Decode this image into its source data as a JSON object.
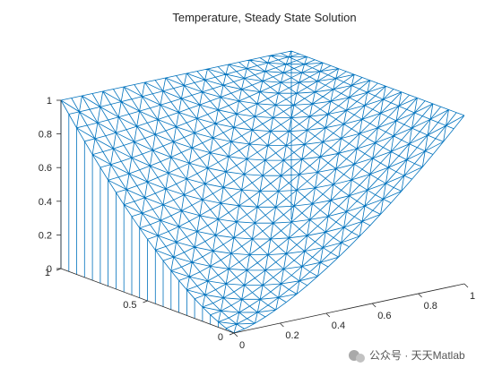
{
  "chart_data": {
    "type": "surface-mesh",
    "title": "Temperature, Steady State Solution",
    "xlabel": "",
    "ylabel": "",
    "zlabel": "",
    "xlim": [
      0,
      1
    ],
    "ylim": [
      0,
      1
    ],
    "zlim": [
      0,
      1
    ],
    "x_ticks": [
      "0",
      "0.2",
      "0.4",
      "0.6",
      "0.8",
      "1"
    ],
    "y_ticks": [
      "0",
      "0.5",
      "1"
    ],
    "z_ticks": [
      "0",
      "0.2",
      "0.4",
      "0.6",
      "0.8",
      "1"
    ],
    "grid": false,
    "mesh": "triangular",
    "boundary_conditions": {
      "y_equals_1_edge": 1,
      "x_equals_1_edge": 1,
      "elsewhere_min": 0
    },
    "line_color": "#0072bd"
  },
  "watermark": {
    "text": "公众号 · 天天Matlab"
  }
}
